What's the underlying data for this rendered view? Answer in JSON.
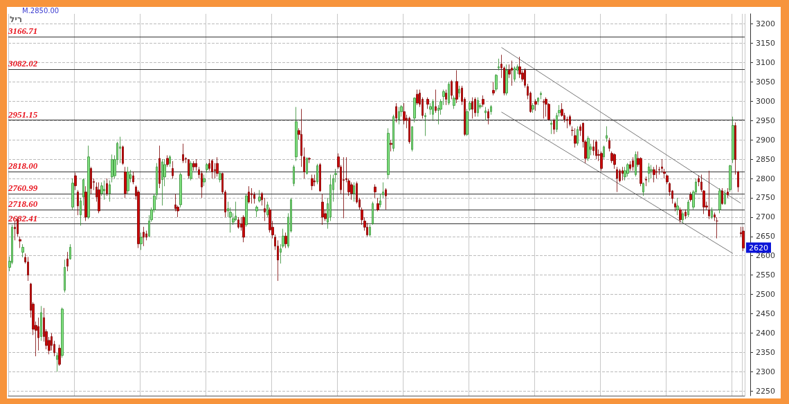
{
  "chart_data": {
    "type": "candlestick",
    "categories": [
      null,
      null,
      null,
      null,
      null,
      null,
      null,
      null,
      null,
      null,
      null,
      null,
      null,
      null,
      null,
      null,
      null,
      null,
      null,
      null,
      null,
      null,
      null,
      null,
      null,
      null,
      null,
      null,
      null,
      null,
      null,
      null,
      null,
      null,
      null,
      null,
      null,
      null,
      null,
      null,
      null,
      null,
      null,
      null,
      null,
      null,
      null,
      null,
      null,
      null,
      null,
      null,
      null,
      null,
      null,
      null,
      null,
      null,
      null,
      null,
      null,
      null,
      null,
      null,
      null,
      null,
      null,
      null,
      null,
      null,
      null,
      null,
      null,
      null,
      null,
      null,
      null,
      null,
      null,
      null,
      null,
      null,
      null,
      null,
      null,
      null,
      null,
      null,
      null,
      null,
      null,
      null,
      null,
      null,
      null,
      null,
      null,
      null,
      null,
      null,
      null,
      null,
      null,
      null,
      null,
      null,
      null,
      null,
      null,
      null,
      null,
      null,
      null,
      null,
      null,
      null,
      null,
      null,
      null,
      null,
      null,
      null,
      null,
      null,
      null,
      null,
      null,
      null,
      null,
      null,
      null,
      null,
      null,
      null,
      null,
      null,
      null,
      null,
      null,
      null,
      null,
      null,
      null,
      null,
      null,
      null,
      null,
      null,
      null,
      null,
      null,
      null,
      null,
      null,
      null,
      null,
      null,
      null,
      null,
      null,
      null,
      null,
      null,
      null,
      null,
      null,
      null,
      null,
      null,
      null,
      null,
      null,
      null,
      null,
      null,
      null,
      null,
      null,
      null,
      null,
      null,
      null,
      null,
      null,
      null,
      null,
      null,
      null,
      null,
      null,
      null,
      null,
      null,
      null,
      null,
      null,
      null,
      null,
      null,
      null,
      null,
      null,
      null,
      null,
      null,
      null,
      null,
      null,
      null,
      null,
      null,
      null,
      null,
      null,
      null,
      null,
      null,
      null,
      null,
      null,
      null,
      null,
      null,
      null,
      null,
      null,
      null,
      null,
      null,
      null,
      null,
      null,
      null,
      null,
      null,
      null,
      null,
      null,
      null,
      null,
      null,
      null,
      null,
      null,
      null,
      null,
      null,
      null,
      null,
      null,
      null,
      null,
      null,
      null,
      null,
      null,
      null,
      null,
      null,
      null,
      null,
      null,
      null,
      null,
      null,
      null,
      null,
      null,
      null,
      null,
      null,
      null,
      null,
      null,
      null,
      null,
      null,
      null,
      null,
      null
    ],
    "ohlc": [
      [
        2570,
        2598,
        2560,
        2586
      ],
      [
        2583,
        2680,
        2578,
        2674
      ],
      [
        2674,
        2690,
        2640,
        2670
      ],
      [
        2693,
        2700,
        2650,
        2657
      ],
      [
        2642,
        2650,
        2620,
        2638
      ],
      [
        2609,
        2630,
        2596,
        2622
      ],
      [
        2596,
        2606,
        2580,
        2584
      ],
      [
        2584,
        2597,
        2535,
        2550
      ],
      [
        2527,
        2530,
        2440,
        2459
      ],
      [
        2475,
        2480,
        2395,
        2410
      ],
      [
        2420,
        2430,
        2340,
        2407
      ],
      [
        2417,
        2440,
        2355,
        2388
      ],
      [
        2391,
        2470,
        2380,
        2453
      ],
      [
        2440,
        2465,
        2378,
        2391
      ],
      [
        2404,
        2410,
        2358,
        2368
      ],
      [
        2381,
        2390,
        2345,
        2355
      ],
      [
        2391,
        2400,
        2355,
        2368
      ],
      [
        2371,
        2380,
        2340,
        2349
      ],
      [
        2332,
        2350,
        2300,
        2342
      ],
      [
        2361,
        2370,
        2315,
        2319
      ],
      [
        2342,
        2466,
        2336,
        2462
      ],
      [
        2511,
        2590,
        2505,
        2570
      ],
      [
        2592,
        2610,
        2560,
        2573
      ],
      [
        2592,
        2630,
        2590,
        2622
      ],
      [
        2726,
        2800,
        2718,
        2788
      ],
      [
        2807,
        2815,
        2770,
        2781
      ],
      [
        2765,
        2770,
        2705,
        2729
      ],
      [
        2706,
        2750,
        2678,
        2742
      ],
      [
        2752,
        2800,
        2730,
        2797
      ],
      [
        2765,
        2780,
        2690,
        2700
      ],
      [
        2700,
        2885,
        2695,
        2856
      ],
      [
        2826,
        2830,
        2760,
        2774
      ],
      [
        2792,
        2800,
        2770,
        2790
      ],
      [
        2778,
        2790,
        2740,
        2752
      ],
      [
        2771,
        2790,
        2710,
        2716
      ],
      [
        2761,
        2790,
        2755,
        2781
      ],
      [
        2768,
        2795,
        2745,
        2772
      ],
      [
        2787,
        2800,
        2755,
        2761
      ],
      [
        2761,
        2795,
        2740,
        2784
      ],
      [
        2804,
        2862,
        2790,
        2849
      ],
      [
        2807,
        2860,
        2800,
        2849
      ],
      [
        2849,
        2895,
        2835,
        2891
      ],
      [
        2878,
        2908,
        2840,
        2882
      ],
      [
        2882,
        2885,
        2835,
        2839
      ],
      [
        2817,
        2830,
        2750,
        2761
      ],
      [
        2768,
        2830,
        2760,
        2817
      ],
      [
        2800,
        2822,
        2790,
        2810
      ],
      [
        2807,
        2818,
        2785,
        2791
      ],
      [
        2778,
        2782,
        2745,
        2755
      ],
      [
        2765,
        2770,
        2620,
        2631
      ],
      [
        2631,
        2660,
        2615,
        2648
      ],
      [
        2661,
        2675,
        2625,
        2648
      ],
      [
        2657,
        2665,
        2640,
        2648
      ],
      [
        2651,
        2705,
        2648,
        2690
      ],
      [
        2693,
        2725,
        2688,
        2719
      ],
      [
        2719,
        2760,
        2712,
        2755
      ],
      [
        2758,
        2840,
        2745,
        2830
      ],
      [
        2852,
        2885,
        2775,
        2787
      ],
      [
        2797,
        2850,
        2730,
        2843
      ],
      [
        2804,
        2850,
        2780,
        2836
      ],
      [
        2852,
        2860,
        2830,
        2836
      ],
      [
        2839,
        2860,
        2830,
        2856
      ],
      [
        2826,
        2845,
        2800,
        2807
      ],
      [
        2732,
        2760,
        2715,
        2722
      ],
      [
        2726,
        2730,
        2700,
        2716
      ],
      [
        2732,
        2815,
        2725,
        2810
      ],
      [
        2862,
        2890,
        2840,
        2846
      ],
      [
        2852,
        2855,
        2840,
        2850
      ],
      [
        2849,
        2850,
        2800,
        2807
      ],
      [
        2800,
        2845,
        2795,
        2839
      ],
      [
        2839,
        2845,
        2820,
        2830
      ],
      [
        2839,
        2850,
        2820,
        2830
      ],
      [
        2823,
        2830,
        2800,
        2810
      ],
      [
        2813,
        2820,
        2750,
        2778
      ],
      [
        2791,
        2810,
        2780,
        2800
      ],
      [
        2823,
        2840,
        2815,
        2836
      ],
      [
        2839,
        2850,
        2820,
        2826
      ],
      [
        2846,
        2850,
        2800,
        2817
      ],
      [
        2823,
        2840,
        2800,
        2820
      ],
      [
        2839,
        2855,
        2805,
        2813
      ],
      [
        2797,
        2820,
        2790,
        2813
      ],
      [
        2813,
        2815,
        2760,
        2765
      ],
      [
        2765,
        2770,
        2700,
        2713
      ],
      [
        2716,
        2740,
        2700,
        2722
      ],
      [
        2700,
        2725,
        2660,
        2713
      ],
      [
        2687,
        2710,
        2680,
        2696
      ],
      [
        2693,
        2740,
        2690,
        2703
      ],
      [
        2693,
        2700,
        2670,
        2674
      ],
      [
        2683,
        2700,
        2665,
        2674
      ],
      [
        2700,
        2705,
        2635,
        2648
      ],
      [
        2680,
        2760,
        2675,
        2755
      ],
      [
        2765,
        2780,
        2735,
        2739
      ],
      [
        2761,
        2775,
        2735,
        2758
      ],
      [
        2758,
        2765,
        2735,
        2748
      ],
      [
        2716,
        2730,
        2700,
        2726
      ],
      [
        2742,
        2770,
        2738,
        2752
      ],
      [
        2761,
        2765,
        2730,
        2745
      ],
      [
        2722,
        2750,
        2690,
        2713
      ],
      [
        2706,
        2740,
        2700,
        2732
      ],
      [
        2719,
        2725,
        2660,
        2667
      ],
      [
        2674,
        2690,
        2645,
        2654
      ],
      [
        2648,
        2655,
        2615,
        2625
      ],
      [
        2625,
        2640,
        2535,
        2589
      ],
      [
        2609,
        2630,
        2580,
        2618
      ],
      [
        2625,
        2670,
        2620,
        2651
      ],
      [
        2651,
        2660,
        2620,
        2631
      ],
      [
        2625,
        2710,
        2620,
        2700
      ],
      [
        2664,
        2750,
        2660,
        2745
      ],
      [
        2787,
        2835,
        2780,
        2830
      ],
      [
        2856,
        2985,
        2845,
        2947
      ],
      [
        2924,
        2930,
        2900,
        2914
      ],
      [
        2914,
        2980,
        2830,
        2859
      ],
      [
        2856,
        2880,
        2800,
        2817
      ],
      [
        2813,
        2855,
        2810,
        2852
      ],
      [
        2852,
        2855,
        2840,
        2850
      ],
      [
        2800,
        2810,
        2770,
        2781
      ],
      [
        2794,
        2810,
        2780,
        2791
      ],
      [
        2791,
        2838,
        2785,
        2833
      ],
      [
        2836,
        2840,
        2765,
        2768
      ],
      [
        2739,
        2760,
        2680,
        2700
      ],
      [
        2709,
        2720,
        2690,
        2696
      ],
      [
        2687,
        2750,
        2670,
        2735
      ],
      [
        2700,
        2810,
        2690,
        2784
      ],
      [
        2771,
        2810,
        2740,
        2800
      ],
      [
        2810,
        2825,
        2790,
        2813
      ],
      [
        2856,
        2865,
        2825,
        2830
      ],
      [
        2830,
        2835,
        2760,
        2771
      ],
      [
        2797,
        2855,
        2697,
        2795
      ],
      [
        2800,
        2855,
        2790,
        2797
      ],
      [
        2794,
        2800,
        2755,
        2765
      ],
      [
        2784,
        2790,
        2745,
        2761
      ],
      [
        2761,
        2790,
        2740,
        2781
      ],
      [
        2787,
        2792,
        2735,
        2739
      ],
      [
        2745,
        2750,
        2720,
        2726
      ],
      [
        2719,
        2725,
        2680,
        2693
      ],
      [
        2690,
        2700,
        2665,
        2674
      ],
      [
        2674,
        2685,
        2650,
        2654
      ],
      [
        2654,
        2680,
        2650,
        2674
      ],
      [
        2683,
        2740,
        2680,
        2735
      ],
      [
        2778,
        2785,
        2750,
        2765
      ],
      [
        2735,
        2750,
        2715,
        2719
      ],
      [
        2732,
        2760,
        2725,
        2742
      ],
      [
        2758,
        2790,
        2750,
        2765
      ],
      [
        2771,
        2775,
        2720,
        2755
      ],
      [
        2810,
        2930,
        2800,
        2917
      ],
      [
        2891,
        2900,
        2870,
        2888
      ],
      [
        2878,
        2965,
        2870,
        2960
      ],
      [
        2986,
        2995,
        2945,
        2956
      ],
      [
        2953,
        2985,
        2940,
        2973
      ],
      [
        2973,
        2990,
        2960,
        2986
      ],
      [
        2973,
        2995,
        2940,
        2950
      ],
      [
        2956,
        2965,
        2930,
        2950
      ],
      [
        2956,
        2960,
        2890,
        2895
      ],
      [
        2875,
        2935,
        2870,
        2934
      ],
      [
        2956,
        3010,
        2945,
        3008
      ],
      [
        3018,
        3030,
        2990,
        2995
      ],
      [
        3021,
        3030,
        2985,
        2992
      ],
      [
        3005,
        3010,
        2955,
        2963
      ],
      [
        2960,
        2970,
        2910,
        2963
      ],
      [
        3005,
        3010,
        2980,
        2992
      ],
      [
        2979,
        2995,
        2965,
        2986
      ],
      [
        2966,
        3005,
        2950,
        2999
      ],
      [
        2986,
        3030,
        2970,
        2976
      ],
      [
        2976,
        2990,
        2940,
        2982
      ],
      [
        2979,
        3005,
        2965,
        2999
      ],
      [
        3012,
        3030,
        2990,
        3025
      ],
      [
        3021,
        3030,
        2990,
        3005
      ],
      [
        2995,
        3050,
        2990,
        3044
      ],
      [
        3051,
        3055,
        3005,
        3015
      ],
      [
        2989,
        3015,
        2980,
        3008
      ],
      [
        3051,
        3080,
        2995,
        3005
      ],
      [
        3021,
        3040,
        3010,
        3031
      ],
      [
        3034,
        3040,
        2990,
        2999
      ],
      [
        3005,
        3010,
        2910,
        2914
      ],
      [
        2914,
        2980,
        2910,
        2973
      ],
      [
        2979,
        3000,
        2975,
        2995
      ],
      [
        2999,
        3010,
        2955,
        2979
      ],
      [
        3005,
        3010,
        2960,
        2970
      ],
      [
        2970,
        3010,
        2960,
        3002
      ],
      [
        2985,
        2995,
        2980,
        2989
      ],
      [
        3005,
        3015,
        2985,
        2992
      ],
      [
        2970,
        2985,
        2950,
        2975
      ],
      [
        2973,
        2980,
        2940,
        2956
      ],
      [
        2973,
        2990,
        2965,
        2986
      ],
      [
        3028,
        3050,
        3015,
        3021
      ],
      [
        3031,
        3070,
        3025,
        3067
      ],
      [
        3086,
        3110,
        3080,
        3089
      ],
      [
        3096,
        3120,
        3060,
        3086
      ],
      [
        3086,
        3090,
        3015,
        3021
      ],
      [
        3021,
        3095,
        3015,
        3080
      ],
      [
        3080,
        3095,
        3060,
        3070
      ],
      [
        3086,
        3105,
        3040,
        3080
      ],
      [
        3057,
        3090,
        3050,
        3086
      ],
      [
        3080,
        3095,
        3070,
        3089
      ],
      [
        3089,
        3115,
        3060,
        3070
      ],
      [
        3073,
        3080,
        3050,
        3057
      ],
      [
        3080,
        3085,
        3035,
        3041
      ],
      [
        3038,
        3045,
        3005,
        3015
      ],
      [
        3021,
        3025,
        2970,
        2973
      ],
      [
        2979,
        2995,
        2970,
        2989
      ],
      [
        2999,
        3005,
        2975,
        2992
      ],
      [
        2999,
        3010,
        2990,
        3008
      ],
      [
        3017,
        3025,
        3005,
        3020
      ],
      [
        2999,
        3005,
        2955,
        2997
      ],
      [
        3005,
        3010,
        2960,
        2992
      ],
      [
        2992,
        2995,
        2950,
        2953
      ],
      [
        2940,
        2950,
        2915,
        2943
      ],
      [
        2950,
        2955,
        2915,
        2927
      ],
      [
        2927,
        2970,
        2920,
        2963
      ],
      [
        2970,
        2990,
        2960,
        2976
      ],
      [
        2979,
        2995,
        2960,
        2963
      ],
      [
        2963,
        2970,
        2945,
        2953
      ],
      [
        2953,
        2960,
        2930,
        2950
      ],
      [
        2960,
        2965,
        2935,
        2940
      ],
      [
        2925,
        2935,
        2910,
        2924
      ],
      [
        2911,
        2930,
        2880,
        2891
      ],
      [
        2891,
        2935,
        2885,
        2927
      ],
      [
        2934,
        2940,
        2910,
        2924
      ],
      [
        2943,
        2945,
        2880,
        2895
      ],
      [
        2895,
        2900,
        2840,
        2852
      ],
      [
        2852,
        2910,
        2845,
        2904
      ],
      [
        2875,
        2890,
        2860,
        2882
      ],
      [
        2882,
        2900,
        2860,
        2872
      ],
      [
        2895,
        2900,
        2850,
        2859
      ],
      [
        2862,
        2875,
        2845,
        2860
      ],
      [
        2865,
        2870,
        2820,
        2826
      ],
      [
        2856,
        2885,
        2850,
        2882
      ],
      [
        2904,
        2935,
        2895,
        2911
      ],
      [
        2898,
        2905,
        2870,
        2878
      ],
      [
        2865,
        2870,
        2840,
        2846
      ],
      [
        2862,
        2865,
        2825,
        2836
      ],
      [
        2823,
        2830,
        2765,
        2800
      ],
      [
        2820,
        2825,
        2790,
        2794
      ],
      [
        2820,
        2830,
        2795,
        2813
      ],
      [
        2804,
        2830,
        2795,
        2820
      ],
      [
        2813,
        2840,
        2805,
        2836
      ],
      [
        2836,
        2845,
        2820,
        2826
      ],
      [
        2846,
        2855,
        2820,
        2830
      ],
      [
        2810,
        2870,
        2805,
        2862
      ],
      [
        2852,
        2870,
        2830,
        2836
      ],
      [
        2852,
        2855,
        2780,
        2787
      ],
      [
        2765,
        2790,
        2755,
        2787
      ],
      [
        2798,
        2805,
        2780,
        2796
      ],
      [
        2813,
        2840,
        2790,
        2830
      ],
      [
        2820,
        2835,
        2800,
        2823
      ],
      [
        2823,
        2830,
        2790,
        2810
      ],
      [
        2818,
        2835,
        2800,
        2816
      ],
      [
        2823,
        2830,
        2810,
        2822
      ],
      [
        2830,
        2850,
        2815,
        2826
      ],
      [
        2817,
        2825,
        2800,
        2813
      ],
      [
        2807,
        2810,
        2785,
        2791
      ],
      [
        2787,
        2790,
        2755,
        2765
      ],
      [
        2768,
        2770,
        2735,
        2748
      ],
      [
        2735,
        2740,
        2715,
        2726
      ],
      [
        2719,
        2750,
        2705,
        2729
      ],
      [
        2719,
        2725,
        2685,
        2693
      ],
      [
        2693,
        2715,
        2685,
        2709
      ],
      [
        2713,
        2720,
        2695,
        2703
      ],
      [
        2706,
        2745,
        2700,
        2739
      ],
      [
        2758,
        2765,
        2740,
        2745
      ],
      [
        2726,
        2770,
        2720,
        2765
      ],
      [
        2765,
        2800,
        2760,
        2791
      ],
      [
        2800,
        2808,
        2780,
        2791
      ],
      [
        2791,
        2810,
        2765,
        2771
      ],
      [
        2768,
        2770,
        2708,
        2726
      ],
      [
        2729,
        2740,
        2720,
        2726
      ],
      [
        2719,
        2820,
        2695,
        2703
      ],
      [
        2700,
        2725,
        2695,
        2716
      ],
      [
        2706,
        2712,
        2690,
        2700
      ],
      [
        2690,
        2700,
        2645,
        2690
      ],
      [
        2719,
        2775,
        2710,
        2768
      ],
      [
        2768,
        2775,
        2732,
        2735
      ],
      [
        2735,
        2770,
        2732,
        2761
      ],
      [
        2765,
        2775,
        2750,
        2758
      ],
      [
        2771,
        2835,
        2765,
        2833
      ],
      [
        2849,
        2960,
        2840,
        2937
      ],
      [
        2937,
        2945,
        2810,
        2849
      ],
      [
        2817,
        2820,
        2765,
        2778
      ],
      [
        2660,
        2675,
        2650,
        2657
      ],
      [
        2664,
        2675,
        2612,
        2620
      ]
    ],
    "series": [
      {
        "type": "line",
        "color": "#777777",
        "values": [
          null,
          null,
          null,
          null,
          null,
          null,
          null,
          null,
          null,
          null,
          null,
          null,
          null,
          null,
          null,
          null,
          null,
          null,
          null,
          null,
          null,
          null,
          null,
          null,
          null,
          null,
          null,
          null,
          null,
          null,
          null,
          null,
          null,
          null,
          null,
          null,
          null,
          null,
          null,
          null,
          null,
          null,
          null,
          null,
          null,
          null,
          null,
          null,
          null,
          null,
          null,
          null,
          null,
          null,
          null,
          null,
          null,
          null,
          null,
          null,
          null,
          null,
          null,
          null,
          null,
          null,
          null,
          null,
          null,
          null,
          null,
          null,
          null,
          null,
          null,
          null,
          null,
          null,
          null,
          null,
          null,
          null,
          null,
          null,
          null,
          null,
          null,
          null,
          null,
          null,
          null,
          null,
          null,
          null,
          null,
          null,
          null,
          null,
          null,
          null,
          null,
          null,
          null,
          null,
          null,
          null,
          null,
          null,
          null,
          null,
          null,
          null,
          null,
          null,
          null,
          null,
          null,
          null,
          null,
          null,
          null,
          null,
          null,
          null,
          null,
          null,
          null,
          null,
          null,
          null,
          null,
          null,
          null,
          null,
          null,
          null,
          null,
          null,
          null,
          null,
          null,
          null,
          null,
          null,
          null,
          null,
          null,
          null,
          null,
          null,
          null,
          null,
          null,
          null,
          null,
          null,
          null,
          null,
          null,
          null,
          null,
          null,
          null,
          null,
          null,
          null,
          null,
          null,
          null,
          null,
          null,
          null,
          null,
          null,
          null,
          null,
          null,
          null,
          null,
          null,
          null,
          null,
          null,
          null,
          null,
          null,
          null,
          3139,
          null,
          null,
          null,
          null,
          null,
          null,
          null,
          null,
          null,
          null,
          null,
          null,
          null,
          null,
          null,
          null,
          null,
          null,
          null,
          null,
          null,
          null,
          null,
          null,
          null,
          null,
          null,
          null,
          null,
          null,
          null,
          null,
          null,
          null,
          null,
          null,
          null,
          null,
          null,
          null,
          null,
          null,
          null,
          null,
          null,
          null,
          null,
          null,
          null,
          null,
          null,
          null,
          null,
          null,
          null,
          null,
          null,
          null,
          null,
          null,
          null,
          null,
          null,
          null,
          null,
          null,
          null,
          null,
          null,
          null,
          null,
          null,
          null,
          null,
          null,
          null,
          null,
          null,
          null,
          null,
          null,
          null,
          null,
          null,
          null,
          null,
          null,
          null,
          null,
          null,
          2736,
          null
        ]
      },
      {
        "type": "line",
        "color": "#777777",
        "values": [
          null,
          null,
          null,
          null,
          null,
          null,
          null,
          null,
          null,
          null,
          null,
          null,
          null,
          null,
          null,
          null,
          null,
          null,
          null,
          null,
          null,
          null,
          null,
          null,
          null,
          null,
          null,
          null,
          null,
          null,
          null,
          null,
          null,
          null,
          null,
          null,
          null,
          null,
          null,
          null,
          null,
          null,
          null,
          null,
          null,
          null,
          null,
          null,
          null,
          null,
          null,
          null,
          null,
          null,
          null,
          null,
          null,
          null,
          null,
          null,
          null,
          null,
          null,
          null,
          null,
          null,
          null,
          null,
          null,
          null,
          null,
          null,
          null,
          null,
          null,
          null,
          null,
          null,
          null,
          null,
          null,
          null,
          null,
          null,
          null,
          null,
          null,
          null,
          null,
          null,
          null,
          null,
          null,
          null,
          null,
          null,
          null,
          null,
          null,
          null,
          null,
          null,
          null,
          null,
          null,
          null,
          null,
          null,
          null,
          null,
          null,
          null,
          null,
          null,
          null,
          null,
          null,
          null,
          null,
          null,
          null,
          null,
          null,
          null,
          null,
          null,
          null,
          null,
          null,
          null,
          null,
          null,
          null,
          null,
          null,
          null,
          null,
          null,
          null,
          null,
          null,
          null,
          null,
          null,
          null,
          null,
          null,
          null,
          null,
          null,
          null,
          null,
          null,
          null,
          null,
          null,
          null,
          null,
          null,
          null,
          null,
          null,
          null,
          null,
          null,
          null,
          null,
          null,
          null,
          null,
          null,
          null,
          null,
          null,
          null,
          null,
          null,
          null,
          null,
          null,
          null,
          null,
          null,
          null,
          null,
          null,
          null,
          2972,
          null,
          null,
          null,
          null,
          null,
          null,
          null,
          null,
          null,
          null,
          null,
          null,
          null,
          null,
          null,
          null,
          null,
          null,
          null,
          null,
          null,
          null,
          null,
          null,
          null,
          null,
          null,
          null,
          null,
          null,
          null,
          null,
          null,
          null,
          null,
          null,
          null,
          null,
          null,
          null,
          null,
          null,
          null,
          null,
          null,
          null,
          null,
          null,
          null,
          null,
          null,
          null,
          null,
          null,
          null,
          null,
          null,
          null,
          null,
          null,
          null,
          null,
          null,
          null,
          null,
          null,
          null,
          null,
          null,
          null,
          null,
          null,
          null,
          null,
          null,
          null,
          null,
          null,
          null,
          null,
          null,
          null,
          null,
          null,
          null,
          null,
          null,
          2606,
          null,
          null,
          null,
          null
        ]
      }
    ],
    "ylim": [
      2238,
      3226
    ],
    "yticks": [
      2250,
      2300,
      2350,
      2400,
      2450,
      2500,
      2550,
      2600,
      2650,
      2700,
      2750,
      2800,
      2850,
      2900,
      2950,
      3000,
      3050,
      3100,
      3150,
      3200
    ],
    "tick_labels": "y",
    "grid": true,
    "ref_lines": [
      {
        "axis": "y",
        "value": 3166.71,
        "label": "3166.71"
      },
      {
        "axis": "y",
        "value": 3082.02,
        "label": "3082.02"
      },
      {
        "axis": "y",
        "value": 2951.15,
        "label": "2951.15"
      },
      {
        "axis": "y",
        "value": 2818.0,
        "label": "2818.00"
      },
      {
        "axis": "y",
        "value": 2760.99,
        "label": "2760.99"
      },
      {
        "axis": "y",
        "value": 2718.6,
        "label": "2718.60"
      },
      {
        "axis": "y",
        "value": 2682.41,
        "label": "2682.41"
      }
    ],
    "annotations": [
      "M.2850.00",
      "ריל",
      {
        "text": "2620",
        "y": 2620
      }
    ]
  }
}
